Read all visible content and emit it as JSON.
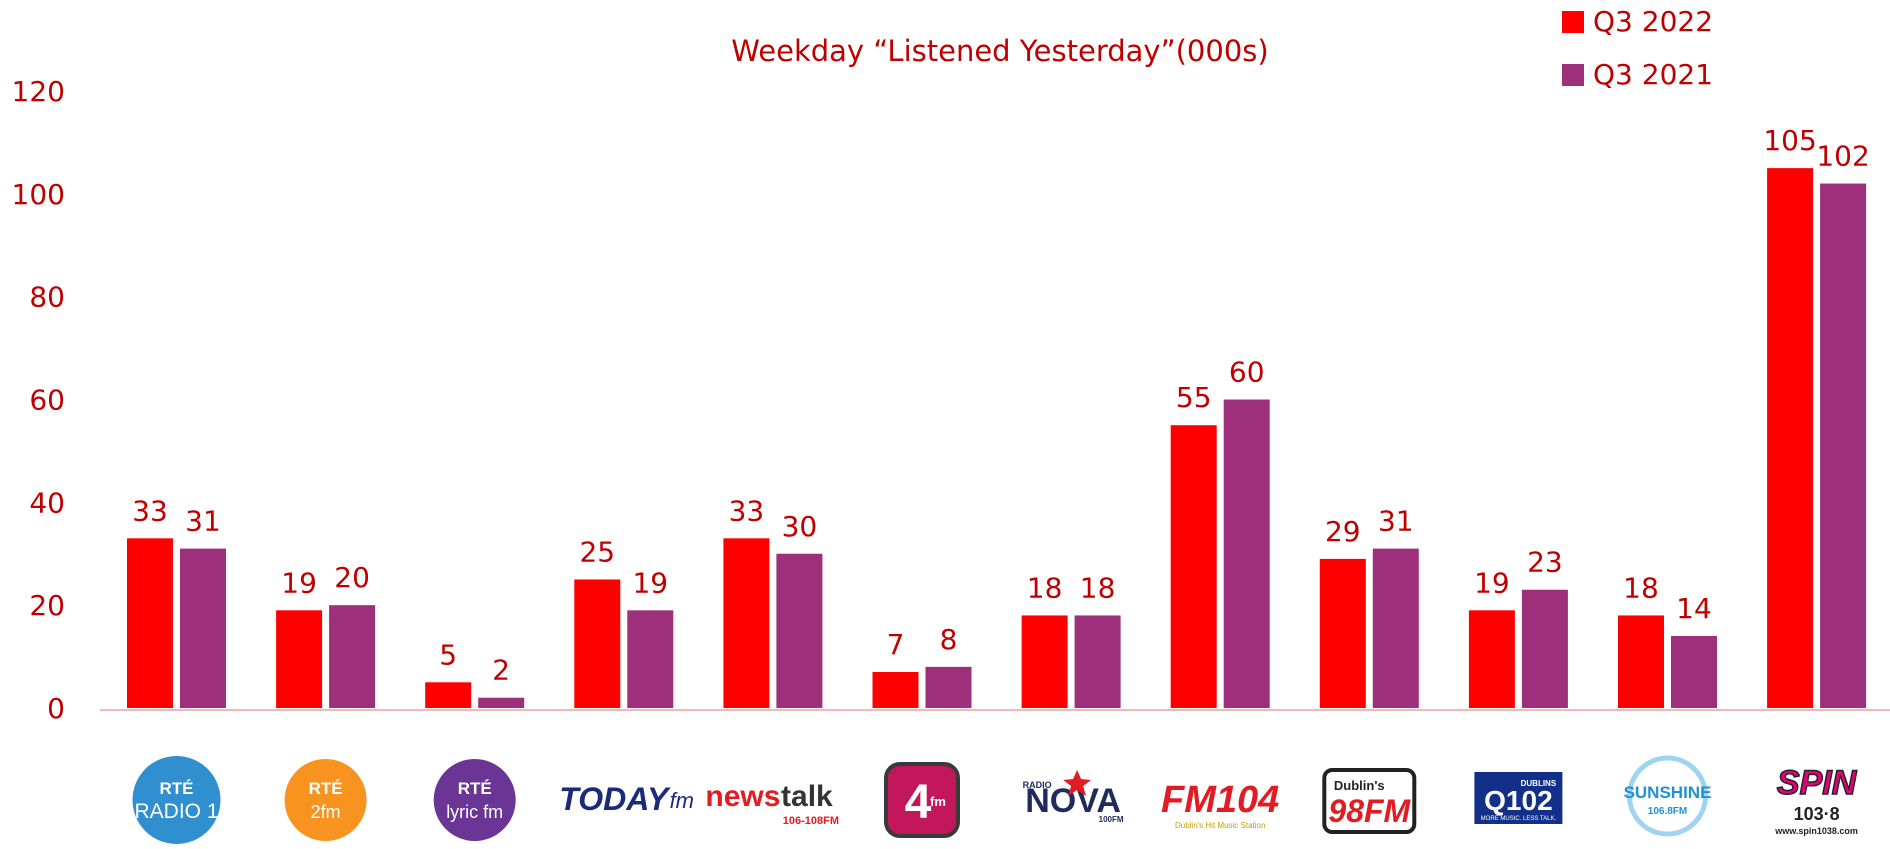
{
  "chart_data": {
    "type": "bar",
    "title": "Weekday “Listened Yesterday”(000s)",
    "ylim": [
      0,
      120
    ],
    "yticks": [
      "0",
      "20",
      "40",
      "60",
      "80",
      "100",
      "120"
    ],
    "grid": false,
    "legend_position": "top-right",
    "categories": [
      "RTÉ Radio 1",
      "RTÉ 2fm",
      "RTÉ lyric fm",
      "Today FM",
      "Newstalk",
      "4fm",
      "Radio Nova",
      "FM104",
      "Dublin's 98FM",
      "Q102",
      "Sunshine 106.8",
      "SPIN 103.8"
    ],
    "series": [
      {
        "name": "Q3 2022",
        "color": "#ff0000",
        "values": [
          33,
          19,
          5,
          25,
          33,
          7,
          18,
          55,
          29,
          19,
          18,
          105
        ]
      },
      {
        "name": "Q3 2021",
        "color": "#9e2f7a",
        "values": [
          31,
          20,
          2,
          19,
          30,
          8,
          18,
          60,
          31,
          23,
          14,
          102
        ]
      }
    ]
  },
  "logos": [
    {
      "lines": [
        "RTÉ",
        "RADIO 1"
      ],
      "icon": "rte-radio1-logo",
      "color": "#2f8fcf"
    },
    {
      "lines": [
        "RTÉ",
        "2fm"
      ],
      "icon": "rte-2fm-logo",
      "color": "#f7931e"
    },
    {
      "lines": [
        "RTÉ",
        "lyric fm"
      ],
      "icon": "rte-lyricfm-logo",
      "color": "#6a3595"
    },
    {
      "lines": [
        "TODAY",
        "fm"
      ],
      "icon": "todayfm-logo",
      "color": "#1b2a7a"
    },
    {
      "lines": [
        "news",
        "talk",
        "106-108FM"
      ],
      "icon": "newstalk-logo",
      "color": "#e31b23"
    },
    {
      "lines": [
        "4",
        "fm"
      ],
      "icon": "4fm-logo",
      "color": "#c2185b"
    },
    {
      "lines": [
        "RADIO",
        "NOVA",
        "100FM"
      ],
      "icon": "radio-nova-logo",
      "color": "#1e2b5e"
    },
    {
      "lines": [
        "FM104",
        "Dublin's Hit Music Station"
      ],
      "icon": "fm104-logo",
      "color": "#e31b23"
    },
    {
      "lines": [
        "Dublin's",
        "98FM"
      ],
      "icon": "98fm-logo",
      "color": "#e31b23"
    },
    {
      "lines": [
        "DUBLINS",
        "Q102",
        "MORE MUSIC. LESS TALK."
      ],
      "icon": "q102-logo",
      "color": "#12308a"
    },
    {
      "lines": [
        "SUNSHINE",
        "106.8FM"
      ],
      "icon": "sunshine-logo",
      "color": "#1e90d6"
    },
    {
      "lines": [
        "SPIN",
        "103·8",
        "www.spin1038.com"
      ],
      "icon": "spin-logo",
      "color": "#e6007e"
    }
  ]
}
